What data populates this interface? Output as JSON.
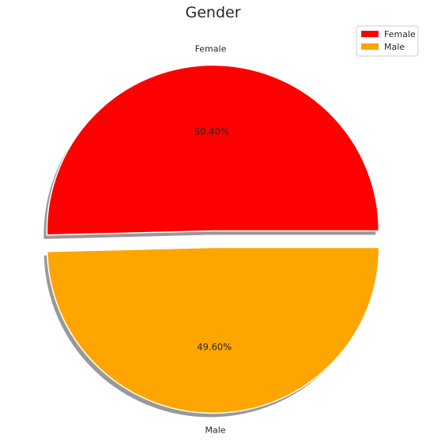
{
  "chart_data": {
    "type": "pie",
    "title": "Gender",
    "slices": [
      {
        "label": "Female",
        "value": 50.4,
        "pct_label": "50.40%",
        "color": "#ff0000",
        "explode": 0.05
      },
      {
        "label": "Male",
        "value": 49.6,
        "pct_label": "49.60%",
        "color": "#ffa500",
        "explode": 0.05
      }
    ],
    "shadow": true,
    "start_angle": 0,
    "legend": {
      "placement": "top-right",
      "entries": [
        "Female",
        "Male"
      ]
    }
  }
}
